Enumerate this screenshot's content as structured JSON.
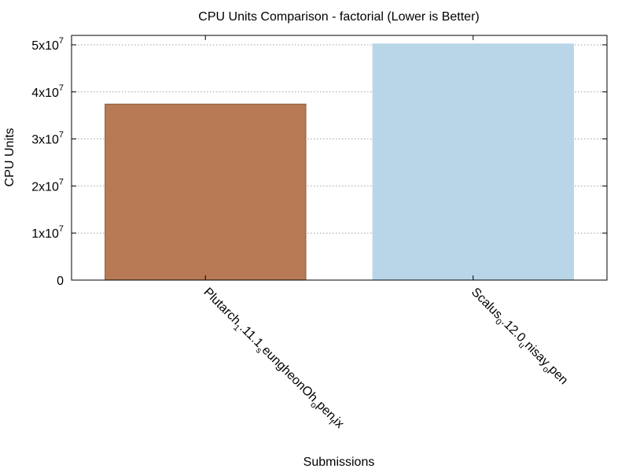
{
  "chart_data": {
    "type": "bar",
    "title": "CPU Units Comparison - factorial (Lower is Better)",
    "xlabel": "Submissions",
    "ylabel": "CPU Units",
    "categories": [
      {
        "label": "Plutarch_1.11.1_seungheonOh_open_fix",
        "parts": [
          {
            "t": "Plutarch",
            "sub": false
          },
          {
            "t": "1",
            "sub": true
          },
          {
            "t": ".11.1",
            "sub": false
          },
          {
            "t": "s",
            "sub": true
          },
          {
            "t": "eungheonOh",
            "sub": false
          },
          {
            "t": "o",
            "sub": true
          },
          {
            "t": "pen",
            "sub": false
          },
          {
            "t": "f",
            "sub": true
          },
          {
            "t": "ix",
            "sub": false
          }
        ]
      },
      {
        "label": "Scalus_0.12.0_unisay_open",
        "parts": [
          {
            "t": "Scalus",
            "sub": false
          },
          {
            "t": "0",
            "sub": true
          },
          {
            "t": ".12.0",
            "sub": false
          },
          {
            "t": "u",
            "sub": true
          },
          {
            "t": "nisay",
            "sub": false
          },
          {
            "t": "o",
            "sub": true
          },
          {
            "t": "pen",
            "sub": false
          }
        ]
      }
    ],
    "values": [
      37400000,
      50200000
    ],
    "colors": [
      "#b77a55",
      "#b8d6e8"
    ],
    "ylim": [
      0,
      52000000
    ],
    "yticks": [
      {
        "value": 0,
        "base": "0",
        "exp": ""
      },
      {
        "value": 10000000,
        "base": "1x10",
        "exp": "7"
      },
      {
        "value": 20000000,
        "base": "2x10",
        "exp": "7"
      },
      {
        "value": 30000000,
        "base": "3x10",
        "exp": "7"
      },
      {
        "value": 40000000,
        "base": "4x10",
        "exp": "7"
      },
      {
        "value": 50000000,
        "base": "5x10",
        "exp": "7"
      }
    ],
    "grid": true,
    "legend": "none"
  }
}
